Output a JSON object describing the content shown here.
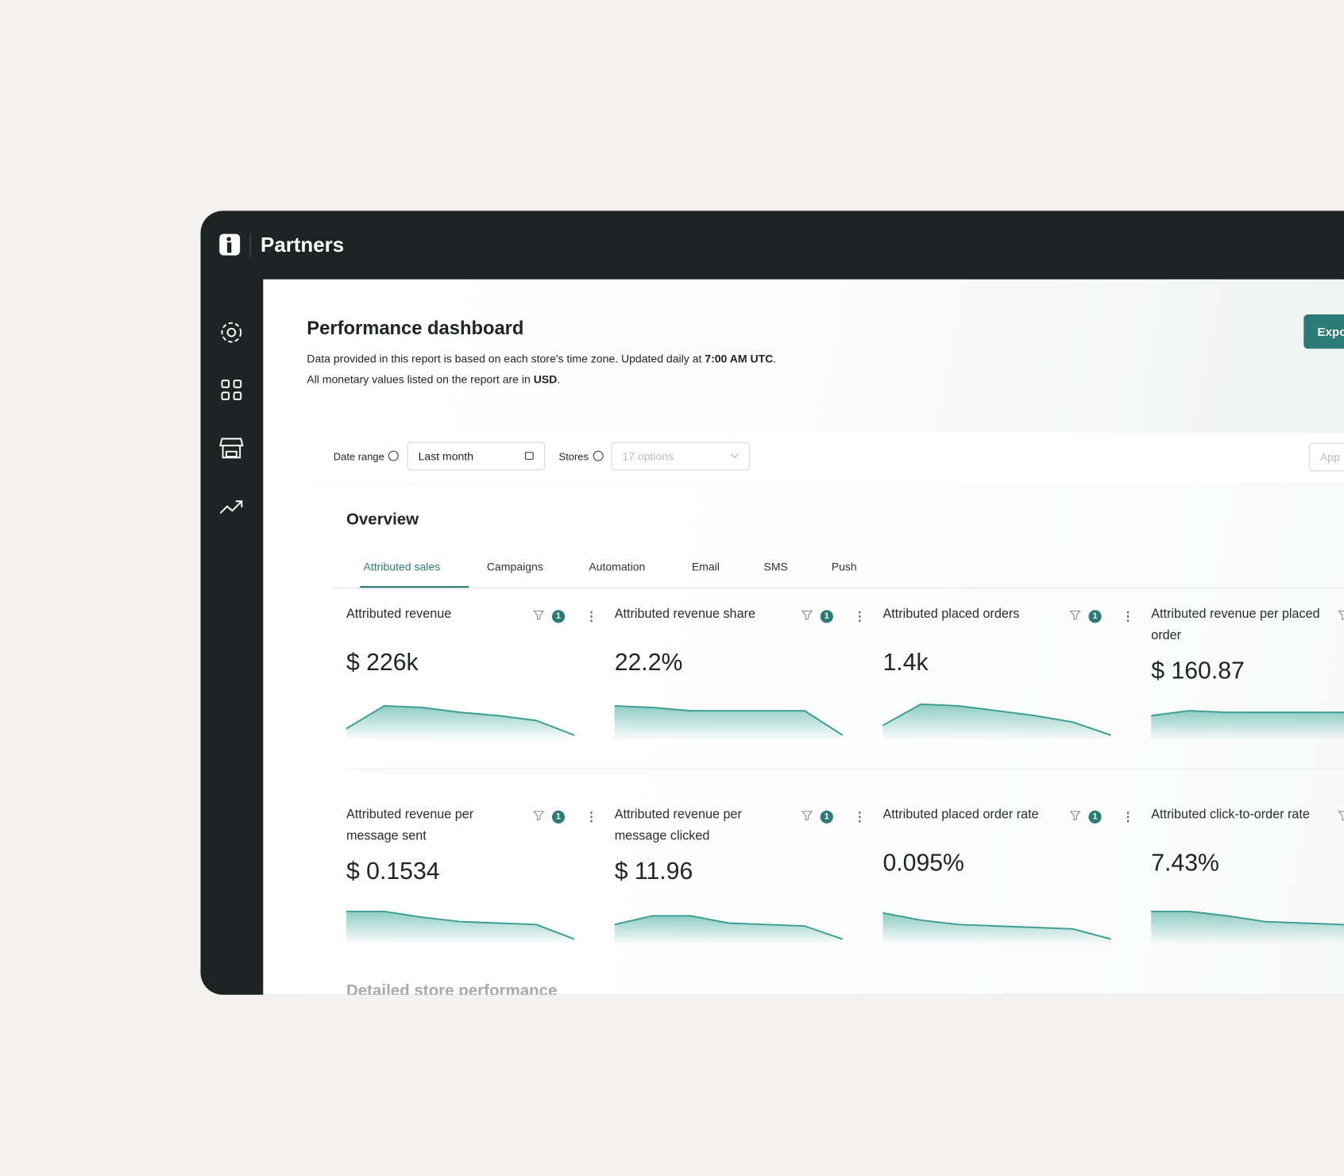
{
  "app": {
    "name": "Partners"
  },
  "header": {
    "title": "Performance dashboard",
    "line1": {
      "text": "Data provided in this report is based on each store's time zone. Updated daily at ",
      "bold": "7:00 AM UTC",
      "end": "."
    },
    "line2": {
      "text": "All monetary values listed on the report are in ",
      "bold": "USD",
      "end": "."
    },
    "export": "Expo"
  },
  "filters": {
    "date_label": "Date range",
    "date_value": "Last month",
    "stores_label": "Stores",
    "stores_value": "17 options",
    "apply": "App"
  },
  "overview": {
    "title": "Overview",
    "tabs": [
      "Attributed sales",
      "Campaigns",
      "Automation",
      "Email",
      "SMS",
      "Push"
    ],
    "cards": [
      {
        "title": "Attributed revenue",
        "value": "$ 226k",
        "badge": "1"
      },
      {
        "title": "Attributed revenue share",
        "value": "22.2%",
        "badge": "1"
      },
      {
        "title": "Attributed placed orders",
        "value": "1.4k",
        "badge": "1"
      },
      {
        "title": "Attributed revenue per placed order",
        "value": "$ 160.87"
      },
      {
        "title": "Attributed revenue per message sent",
        "value": "$ 0.1534",
        "badge": "1"
      },
      {
        "title": "Attributed revenue per message clicked",
        "value": "$ 11.96",
        "badge": "1"
      },
      {
        "title": "Attributed placed order rate",
        "value": "0.095%",
        "badge": "1"
      },
      {
        "title": "Attributed click-to-order rate",
        "value": "7.43%"
      }
    ]
  },
  "section": "Detailed store performance"
}
